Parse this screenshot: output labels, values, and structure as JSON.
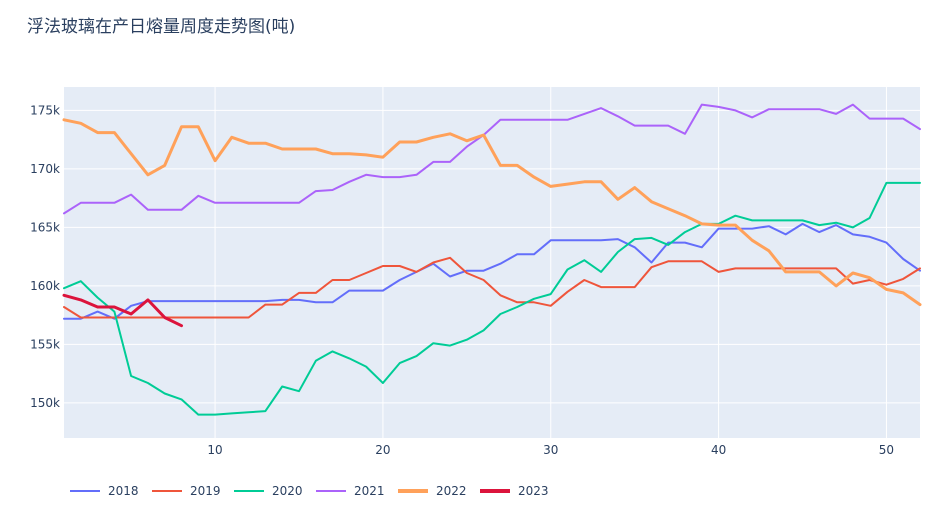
{
  "chart_data": {
    "type": "line",
    "title": "浮法玻璃在产日熔量周度走势图(吨)",
    "xlabel": "",
    "ylabel": "",
    "xlim": [
      1,
      52
    ],
    "ylim": [
      147000,
      177000
    ],
    "x_ticks": [
      10,
      20,
      30,
      40,
      50
    ],
    "y_ticks": [
      150000,
      155000,
      160000,
      165000,
      170000,
      175000
    ],
    "y_tick_labels": [
      "150k",
      "155k",
      "160k",
      "165k",
      "170k",
      "175k"
    ],
    "legend_position": "bottom-left",
    "plot_background": "#E5ECF6",
    "grid": true,
    "series": [
      {
        "name": "2018",
        "color": "#636EFA",
        "x": [
          1,
          2,
          3,
          4,
          5,
          6,
          7,
          8,
          9,
          10,
          11,
          12,
          13,
          14,
          15,
          16,
          17,
          18,
          19,
          20,
          21,
          22,
          23,
          24,
          25,
          26,
          27,
          28,
          29,
          30,
          31,
          32,
          33,
          34,
          35,
          36,
          37,
          38,
          39,
          40,
          41,
          42,
          43,
          44,
          45,
          46,
          47,
          48,
          49,
          50,
          51,
          52
        ],
        "values": [
          157200,
          157200,
          157800,
          157200,
          158300,
          158700,
          158700,
          158700,
          158700,
          158700,
          158700,
          158700,
          158700,
          158800,
          158800,
          158600,
          158600,
          159600,
          159600,
          159600,
          160500,
          161200,
          161900,
          160800,
          161300,
          161300,
          161900,
          162700,
          162700,
          163900,
          163900,
          163900,
          163900,
          164000,
          163300,
          162000,
          163700,
          163700,
          163300,
          164900,
          164900,
          164900,
          165100,
          164400,
          165300,
          164600,
          165200,
          164400,
          164200,
          163700,
          162300,
          161300
        ]
      },
      {
        "name": "2019",
        "color": "#EF553B",
        "x": [
          1,
          2,
          3,
          4,
          5,
          6,
          7,
          8,
          9,
          10,
          11,
          12,
          13,
          14,
          15,
          16,
          17,
          18,
          19,
          20,
          21,
          22,
          23,
          24,
          25,
          26,
          27,
          28,
          29,
          30,
          31,
          32,
          33,
          34,
          35,
          36,
          37,
          38,
          39,
          40,
          41,
          42,
          43,
          44,
          45,
          46,
          47,
          48,
          49,
          50,
          51,
          52
        ],
        "values": [
          158200,
          157300,
          157300,
          157300,
          157300,
          157300,
          157300,
          157300,
          157300,
          157300,
          157300,
          157300,
          158400,
          158400,
          159400,
          159400,
          160500,
          160500,
          161100,
          161700,
          161700,
          161200,
          162000,
          162400,
          161100,
          160500,
          159200,
          158600,
          158600,
          158300,
          159500,
          160500,
          159900,
          159900,
          159900,
          161600,
          162100,
          162100,
          162100,
          161200,
          161500,
          161500,
          161500,
          161500,
          161500,
          161500,
          161500,
          160200,
          160500,
          160100,
          160600,
          161500
        ]
      },
      {
        "name": "2020",
        "color": "#00CC96",
        "x": [
          1,
          2,
          3,
          4,
          5,
          6,
          7,
          8,
          9,
          10,
          11,
          12,
          13,
          14,
          15,
          16,
          17,
          18,
          19,
          20,
          21,
          22,
          23,
          24,
          25,
          26,
          27,
          28,
          29,
          30,
          31,
          32,
          33,
          34,
          35,
          36,
          37,
          38,
          39,
          40,
          41,
          42,
          43,
          44,
          45,
          46,
          47,
          48,
          49,
          50,
          51,
          52
        ],
        "values": [
          159800,
          160400,
          159000,
          157800,
          152300,
          151700,
          150800,
          150300,
          149000,
          149000,
          149100,
          149200,
          149300,
          151400,
          151000,
          153600,
          154400,
          153800,
          153100,
          151700,
          153400,
          154000,
          155100,
          154900,
          155400,
          156200,
          157600,
          158200,
          158900,
          159300,
          161400,
          162200,
          161200,
          162900,
          164000,
          164100,
          163500,
          164600,
          165300,
          165300,
          166000,
          165600,
          165600,
          165600,
          165600,
          165200,
          165400,
          165000,
          165800,
          168800,
          168800,
          168800
        ]
      },
      {
        "name": "2021",
        "color": "#AB63FA",
        "x": [
          1,
          2,
          3,
          4,
          5,
          6,
          7,
          8,
          9,
          10,
          11,
          12,
          13,
          14,
          15,
          16,
          17,
          18,
          19,
          20,
          21,
          22,
          23,
          24,
          25,
          26,
          27,
          28,
          29,
          30,
          31,
          32,
          33,
          34,
          35,
          36,
          37,
          38,
          39,
          40,
          41,
          42,
          43,
          44,
          45,
          46,
          47,
          48,
          49,
          50,
          51,
          52
        ],
        "values": [
          166200,
          167100,
          167100,
          167100,
          167800,
          166500,
          166500,
          166500,
          167700,
          167100,
          167100,
          167100,
          167100,
          167100,
          167100,
          168100,
          168200,
          168900,
          169500,
          169300,
          169300,
          169500,
          170600,
          170600,
          171900,
          172900,
          174200,
          174200,
          174200,
          174200,
          174200,
          174700,
          175200,
          174500,
          173700,
          173700,
          173700,
          173000,
          175500,
          175300,
          175000,
          174400,
          175100,
          175100,
          175100,
          175100,
          174700,
          175500,
          174300,
          174300,
          174300,
          173400
        ]
      },
      {
        "name": "2022",
        "color": "#FFA15A",
        "x": [
          1,
          2,
          3,
          4,
          5,
          6,
          7,
          8,
          9,
          10,
          11,
          12,
          13,
          14,
          15,
          16,
          17,
          18,
          19,
          20,
          21,
          22,
          23,
          24,
          25,
          26,
          27,
          28,
          29,
          30,
          31,
          32,
          33,
          34,
          35,
          36,
          37,
          38,
          39,
          40,
          41,
          42,
          43,
          44,
          45,
          46,
          47,
          48,
          49,
          50,
          51,
          52
        ],
        "values": [
          174200,
          173900,
          173100,
          173100,
          171300,
          169500,
          170300,
          173600,
          173600,
          170700,
          172700,
          172200,
          172200,
          171700,
          171700,
          171700,
          171300,
          171300,
          171200,
          171000,
          172300,
          172300,
          172700,
          173000,
          172400,
          172900,
          170300,
          170300,
          169300,
          168500,
          168700,
          168900,
          168900,
          167400,
          168400,
          167200,
          166600,
          166000,
          165300,
          165200,
          165200,
          163900,
          163000,
          161200,
          161200,
          161200,
          160000,
          161100,
          160700,
          159700,
          159400,
          158400
        ]
      },
      {
        "name": "2023",
        "color": "#DC143C",
        "x": [
          1,
          2,
          3,
          4,
          5,
          6,
          7,
          8
        ],
        "values": [
          159200,
          158800,
          158200,
          158200,
          157600,
          158800,
          157300,
          156600
        ]
      }
    ]
  }
}
